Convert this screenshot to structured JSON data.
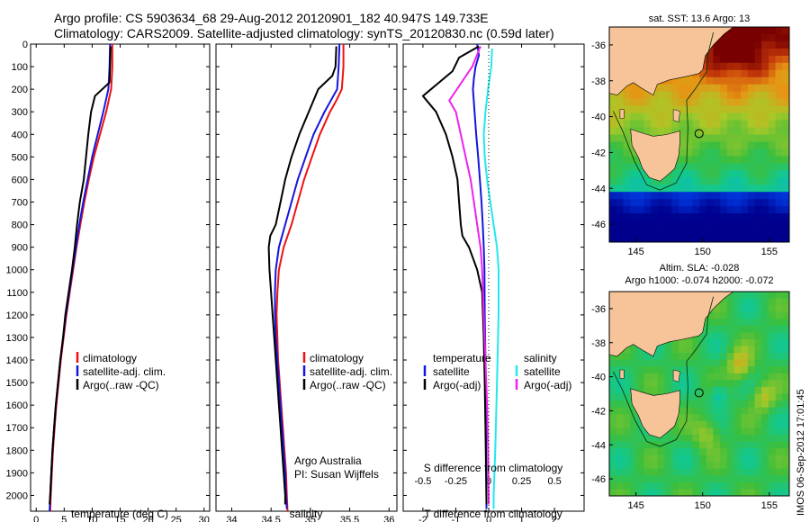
{
  "header": {
    "line1": "Argo profile: CS 5903634_68 29-Aug-2012 20120901_182 40.947S 149.733E",
    "line2": "Climatology: CARS2009. Satellite-adjusted climatology: synTS_20120830.nc (0.59d later)"
  },
  "colors": {
    "climatology": "#ee1111",
    "satellite_adj": "#1515dd",
    "argo": "#000000",
    "salinity_satellite": "#22e8ee",
    "salinity_argo": "#ee22ee",
    "land": "#f7c49a",
    "dashed_zero": "#000000"
  },
  "depth_axis": {
    "ticks": [
      "0",
      "100",
      "200",
      "300",
      "400",
      "500",
      "600",
      "700",
      "800",
      "900",
      "1000",
      "1100",
      "1200",
      "1300",
      "1400",
      "1500",
      "1600",
      "1700",
      "1800",
      "1900",
      "2000"
    ],
    "ylim": [
      0,
      2070
    ]
  },
  "chart_data": [
    {
      "type": "line",
      "panel": "temperature",
      "xlabel": "temperature (deg C)",
      "xlim": [
        -1,
        31
      ],
      "xticks": [
        "0",
        "5",
        "10",
        "15",
        "20",
        "25",
        "30"
      ],
      "legend": [
        "climatology",
        "satellite-adj. clim.",
        "Argo(..raw -QC)"
      ],
      "series": [
        {
          "name": "climatology",
          "points": [
            [
              13.6,
              0
            ],
            [
              13.6,
              100
            ],
            [
              13.5,
              150
            ],
            [
              13.4,
              200
            ],
            [
              12.5,
              300
            ],
            [
              11.4,
              400
            ],
            [
              10.3,
              500
            ],
            [
              9.4,
              600
            ],
            [
              8.6,
              700
            ],
            [
              7.9,
              800
            ],
            [
              7.2,
              900
            ],
            [
              6.6,
              1000
            ],
            [
              6.0,
              1100
            ],
            [
              5.4,
              1200
            ],
            [
              4.9,
              1300
            ],
            [
              4.4,
              1400
            ],
            [
              4.0,
              1500
            ],
            [
              3.6,
              1600
            ],
            [
              3.3,
              1700
            ],
            [
              3.0,
              1800
            ],
            [
              2.8,
              1900
            ],
            [
              2.6,
              2000
            ],
            [
              2.5,
              2070
            ]
          ]
        },
        {
          "name": "satellite-adj. clim.",
          "points": [
            [
              13.2,
              0
            ],
            [
              13.1,
              100
            ],
            [
              13.0,
              150
            ],
            [
              12.9,
              200
            ],
            [
              12.0,
              300
            ],
            [
              11.0,
              400
            ],
            [
              10.0,
              500
            ],
            [
              9.2,
              600
            ],
            [
              8.4,
              700
            ],
            [
              7.7,
              800
            ],
            [
              7.1,
              900
            ],
            [
              6.5,
              1000
            ],
            [
              5.9,
              1100
            ],
            [
              5.3,
              1200
            ],
            [
              4.8,
              1300
            ],
            [
              4.3,
              1400
            ],
            [
              3.9,
              1500
            ],
            [
              3.5,
              1600
            ],
            [
              3.2,
              1700
            ],
            [
              2.9,
              1800
            ],
            [
              2.7,
              1900
            ],
            [
              2.5,
              2000
            ],
            [
              2.4,
              2070
            ]
          ]
        },
        {
          "name": "Argo(..raw -QC)",
          "points": [
            [
              13.3,
              10
            ],
            [
              13.2,
              100
            ],
            [
              13.1,
              170
            ],
            [
              10.5,
              230
            ],
            [
              9.8,
              300
            ],
            [
              9.3,
              400
            ],
            [
              8.9,
              500
            ],
            [
              8.5,
              600
            ],
            [
              7.8,
              700
            ],
            [
              7.3,
              800
            ],
            [
              6.9,
              900
            ],
            [
              6.4,
              1000
            ],
            [
              5.8,
              1100
            ],
            [
              5.2,
              1200
            ],
            [
              4.8,
              1300
            ],
            [
              4.3,
              1400
            ],
            [
              3.9,
              1500
            ],
            [
              3.5,
              1600
            ],
            [
              3.2,
              1700
            ],
            [
              2.9,
              1800
            ],
            [
              2.7,
              1900
            ],
            [
              2.5,
              2000
            ],
            [
              2.4,
              2040
            ]
          ]
        }
      ]
    },
    {
      "type": "line",
      "panel": "salinity",
      "xlabel": "salinity",
      "xlim": [
        33.8,
        36.1
      ],
      "xticks": [
        "34",
        "34.5",
        "35",
        "35.5",
        "36"
      ],
      "legend": [
        "climatology",
        "satellite-adj. clim.",
        "Argo(..raw -QC)"
      ],
      "annotation": [
        "Argo Australia",
        "PI: Susan Wijffels"
      ],
      "series": [
        {
          "name": "climatology",
          "points": [
            [
              35.42,
              0
            ],
            [
              35.42,
              100
            ],
            [
              35.4,
              200
            ],
            [
              35.33,
              250
            ],
            [
              35.25,
              300
            ],
            [
              35.12,
              400
            ],
            [
              35.02,
              500
            ],
            [
              34.92,
              600
            ],
            [
              34.84,
              700
            ],
            [
              34.76,
              800
            ],
            [
              34.66,
              900
            ],
            [
              34.6,
              1000
            ],
            [
              34.58,
              1100
            ],
            [
              34.57,
              1200
            ],
            [
              34.58,
              1300
            ],
            [
              34.59,
              1400
            ],
            [
              34.61,
              1500
            ],
            [
              34.63,
              1600
            ],
            [
              34.65,
              1700
            ],
            [
              34.67,
              1800
            ],
            [
              34.69,
              1900
            ],
            [
              34.7,
              2000
            ],
            [
              34.71,
              2070
            ]
          ]
        },
        {
          "name": "satellite-adj. clim.",
          "points": [
            [
              35.37,
              0
            ],
            [
              35.36,
              100
            ],
            [
              35.34,
              200
            ],
            [
              35.26,
              250
            ],
            [
              35.18,
              300
            ],
            [
              35.04,
              400
            ],
            [
              34.94,
              500
            ],
            [
              34.84,
              600
            ],
            [
              34.76,
              700
            ],
            [
              34.68,
              800
            ],
            [
              34.6,
              900
            ],
            [
              34.56,
              1000
            ],
            [
              34.55,
              1100
            ],
            [
              34.55,
              1200
            ],
            [
              34.56,
              1300
            ],
            [
              34.58,
              1400
            ],
            [
              34.6,
              1500
            ],
            [
              34.62,
              1600
            ],
            [
              34.64,
              1700
            ],
            [
              34.66,
              1800
            ],
            [
              34.68,
              1900
            ],
            [
              34.69,
              2000
            ],
            [
              34.7,
              2060
            ]
          ]
        },
        {
          "name": "Argo(..raw -QC)",
          "points": [
            [
              35.33,
              10
            ],
            [
              35.32,
              100
            ],
            [
              35.28,
              140
            ],
            [
              35.1,
              200
            ],
            [
              34.98,
              300
            ],
            [
              34.86,
              400
            ],
            [
              34.76,
              500
            ],
            [
              34.68,
              600
            ],
            [
              34.62,
              700
            ],
            [
              34.56,
              800
            ],
            [
              34.49,
              850
            ],
            [
              34.47,
              900
            ],
            [
              34.48,
              1000
            ],
            [
              34.5,
              1100
            ],
            [
              34.52,
              1200
            ],
            [
              34.54,
              1300
            ],
            [
              34.56,
              1400
            ],
            [
              34.58,
              1500
            ],
            [
              34.6,
              1600
            ],
            [
              34.62,
              1700
            ],
            [
              34.64,
              1800
            ],
            [
              34.66,
              1900
            ],
            [
              34.68,
              2000
            ],
            [
              34.68,
              2040
            ]
          ]
        }
      ]
    },
    {
      "type": "line",
      "panel": "differences",
      "xlabel": "T difference from climatology",
      "xlabel2": "S difference from climatology",
      "xlim": [
        -2.6,
        2.9
      ],
      "xticks": [
        "-2",
        "-1",
        "0",
        "1",
        "2"
      ],
      "s_ticks": [
        "-0.5",
        "-0.25",
        "0",
        "0.25",
        "0.5"
      ],
      "legend_temperature": {
        "title": "temperature",
        "items": [
          "satellite",
          "Argo(-adj)"
        ]
      },
      "legend_salinity": {
        "title": "salinity",
        "items": [
          "satellite",
          "Argo(-adj)"
        ]
      },
      "series": [
        {
          "name": "temperature satellite",
          "points": [
            [
              -0.35,
              0
            ],
            [
              -0.3,
              50
            ],
            [
              -0.4,
              100
            ],
            [
              -0.45,
              150
            ],
            [
              -0.48,
              200
            ],
            [
              -0.43,
              300
            ],
            [
              -0.38,
              400
            ],
            [
              -0.32,
              500
            ],
            [
              -0.27,
              600
            ],
            [
              -0.22,
              700
            ],
            [
              -0.18,
              800
            ],
            [
              -0.15,
              900
            ],
            [
              -0.13,
              1000
            ],
            [
              -0.12,
              1200
            ],
            [
              -0.1,
              1400
            ],
            [
              -0.09,
              1600
            ],
            [
              -0.08,
              1800
            ],
            [
              -0.07,
              2000
            ],
            [
              -0.07,
              2060
            ]
          ]
        },
        {
          "name": "temperature Argo(-adj)",
          "points": [
            [
              -0.3,
              10
            ],
            [
              -0.9,
              60
            ],
            [
              -1.1,
              120
            ],
            [
              -2.0,
              230
            ],
            [
              -1.6,
              300
            ],
            [
              -1.3,
              400
            ],
            [
              -1.1,
              500
            ],
            [
              -0.95,
              600
            ],
            [
              -0.9,
              700
            ],
            [
              -0.85,
              800
            ],
            [
              -0.8,
              850
            ],
            [
              -0.6,
              900
            ],
            [
              -0.35,
              1000
            ],
            [
              -0.2,
              1100
            ],
            [
              -0.15,
              1300
            ],
            [
              -0.12,
              1500
            ],
            [
              -0.1,
              1700
            ],
            [
              -0.08,
              1900
            ],
            [
              -0.07,
              2040
            ]
          ]
        },
        {
          "name": "salinity satellite",
          "points": [
            [
              0.1,
              20
            ],
            [
              0.08,
              100
            ],
            [
              -0.02,
              200
            ],
            [
              -0.1,
              300
            ],
            [
              -0.15,
              400
            ],
            [
              -0.12,
              500
            ],
            [
              -0.05,
              600
            ],
            [
              0.05,
              700
            ],
            [
              0.15,
              800
            ],
            [
              0.25,
              900
            ],
            [
              0.3,
              1000
            ],
            [
              0.3,
              1200
            ],
            [
              0.25,
              1500
            ],
            [
              0.2,
              1800
            ],
            [
              0.15,
              2000
            ],
            [
              0.15,
              2060
            ]
          ]
        },
        {
          "name": "salinity Argo(-adj)",
          "points": [
            [
              -0.25,
              10
            ],
            [
              -0.5,
              100
            ],
            [
              -1.2,
              250
            ],
            [
              -1.0,
              300
            ],
            [
              -0.85,
              400
            ],
            [
              -0.7,
              500
            ],
            [
              -0.55,
              600
            ],
            [
              -0.45,
              700
            ],
            [
              -0.35,
              800
            ],
            [
              -0.25,
              900
            ],
            [
              -0.2,
              1000
            ],
            [
              -0.15,
              1200
            ],
            [
              -0.1,
              1400
            ],
            [
              -0.05,
              1600
            ],
            [
              -0.02,
              1800
            ],
            [
              0.0,
              2000
            ],
            [
              0.0,
              2040
            ]
          ]
        }
      ]
    },
    {
      "type": "heatmap",
      "panel": "sst_map",
      "title": "sat. SST: 13.6 Argo: 13",
      "xticks": [
        "145",
        "150",
        "155"
      ],
      "yticks": [
        "-36",
        "-38",
        "-40",
        "-42",
        "-44",
        "-46"
      ],
      "xlim": [
        143,
        156.5
      ],
      "ylim": [
        -47,
        -35
      ]
    },
    {
      "type": "heatmap",
      "panel": "sla_map",
      "title": "Altim. SLA: -0.028",
      "subtitle": "Argo h1000: -0.074 h2000: -0.072",
      "xticks": [
        "145",
        "150",
        "155"
      ],
      "yticks": [
        "-36",
        "-38",
        "-40",
        "-42",
        "-44",
        "-46"
      ],
      "xlim": [
        143,
        156.5
      ],
      "ylim": [
        -47,
        -35
      ]
    }
  ],
  "footer": {
    "side_label": "IMOS 06-Sep-2012 17:01:45"
  }
}
